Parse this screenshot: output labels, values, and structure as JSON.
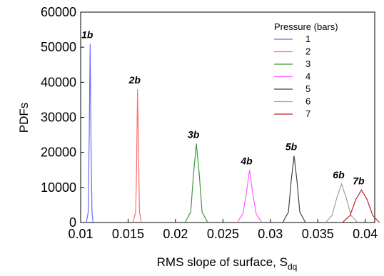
{
  "chart_data": {
    "type": "line",
    "xlabel": "RMS slope of surface, S",
    "xlabel_sub": "dq",
    "ylabel": "PDFs",
    "xlim": [
      0.01,
      0.041
    ],
    "ylim": [
      0,
      60000
    ],
    "x_ticks": [
      "0.01",
      "0.015",
      "0.02",
      "0.025",
      "0.03",
      "0.035",
      "0.04"
    ],
    "y_ticks": [
      "0",
      "10000",
      "20000",
      "30000",
      "40000",
      "50000",
      "60000"
    ],
    "grid": false,
    "legend_title": "Pressure (bars)",
    "legend_position": "top-right",
    "series": [
      {
        "name": "1",
        "color": "#6b6bff",
        "peak_label": "1b",
        "x": [
          0.0106,
          0.0108,
          0.0109,
          0.011,
          0.0111,
          0.0112,
          0.0113
        ],
        "y": [
          0,
          3000,
          25000,
          51000,
          21000,
          3000,
          0
        ]
      },
      {
        "name": "2",
        "color": "#ff6b6b",
        "peak_label": "2b",
        "x": [
          0.0155,
          0.0158,
          0.0159,
          0.016,
          0.0161,
          0.0162,
          0.0164
        ],
        "y": [
          0,
          3000,
          16000,
          38000,
          20000,
          3000,
          0
        ]
      },
      {
        "name": "3",
        "color": "#3a9a3a",
        "peak_label": "3b",
        "x": [
          0.021,
          0.0216,
          0.0219,
          0.0222,
          0.0225,
          0.0228,
          0.0234
        ],
        "y": [
          0,
          3000,
          14000,
          22500,
          14000,
          3000,
          0
        ]
      },
      {
        "name": "4",
        "color": "#ff5aff",
        "peak_label": "4b",
        "x": [
          0.0265,
          0.0271,
          0.0275,
          0.0278,
          0.0281,
          0.0285,
          0.0291
        ],
        "y": [
          0,
          2500,
          9000,
          15000,
          9000,
          2500,
          0
        ]
      },
      {
        "name": "5",
        "color": "#444444",
        "peak_label": "5b",
        "x": [
          0.0313,
          0.0319,
          0.0322,
          0.0325,
          0.0328,
          0.0331,
          0.0337
        ],
        "y": [
          0,
          3000,
          12000,
          19000,
          12000,
          3000,
          0
        ]
      },
      {
        "name": "6",
        "color": "#a0a0a0",
        "peak_label": "6b",
        "x": [
          0.0358,
          0.0365,
          0.037,
          0.0375,
          0.038,
          0.0385,
          0.0392
        ],
        "y": [
          0,
          2000,
          7000,
          11000,
          7000,
          2000,
          0
        ]
      },
      {
        "name": "7",
        "color": "#c0202a",
        "peak_label": "7b",
        "x": [
          0.0376,
          0.0384,
          0.039,
          0.0396,
          0.0402,
          0.0408,
          0.0415
        ],
        "y": [
          0,
          2000,
          6500,
          9300,
          6500,
          2000,
          0
        ]
      }
    ]
  }
}
